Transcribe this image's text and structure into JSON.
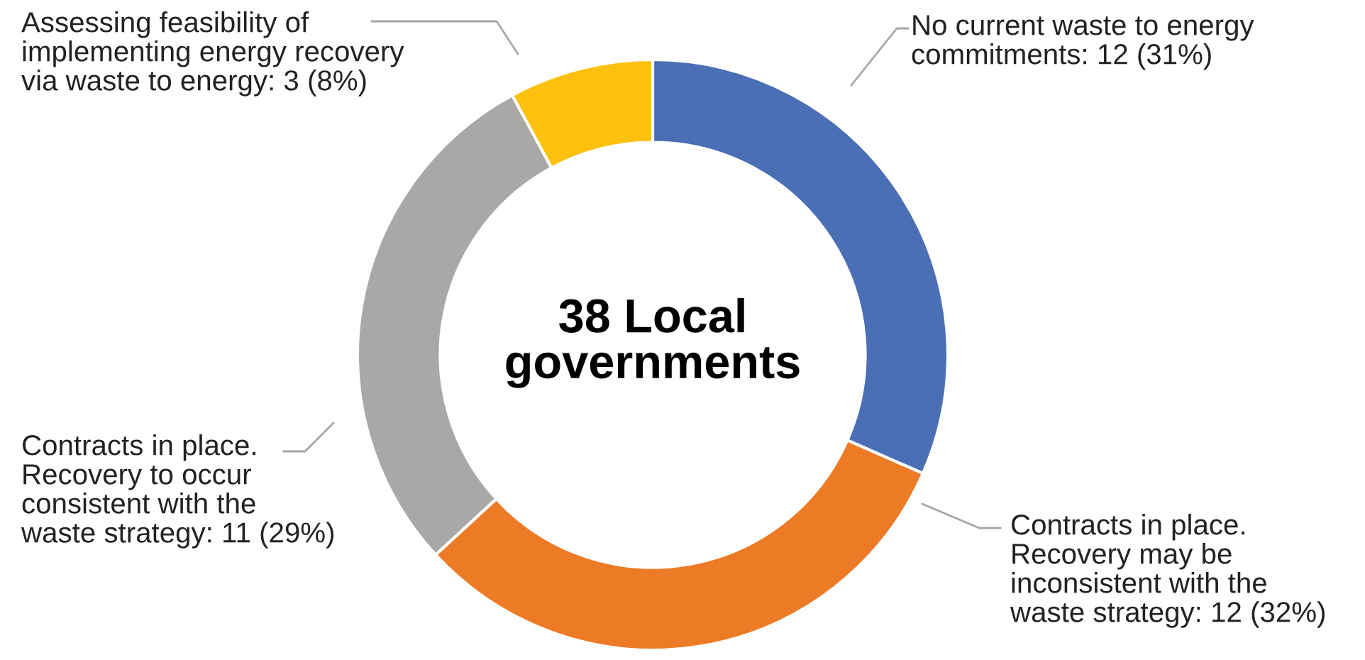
{
  "chart_data": {
    "type": "donut",
    "categories": [
      "No current waste to energy commitments",
      "Contracts in place. Recovery may be inconsistent with the waste strategy",
      "Contracts in place. Recovery to occur consistent with the waste strategy",
      "Assessing feasibility of implementing energy recovery via waste to energy"
    ],
    "values": [
      12,
      12,
      11,
      3
    ],
    "value_labels": [
      "12 (31%)",
      "12 (32%)",
      "11 (29%)",
      "3 (8%)"
    ],
    "colors": [
      "#4a6fb5",
      "#ed7a25",
      "#aaa8a6",
      "#fcc10f"
    ],
    "annotations": [
      "38 Local governments"
    ],
    "legend": false
  }
}
